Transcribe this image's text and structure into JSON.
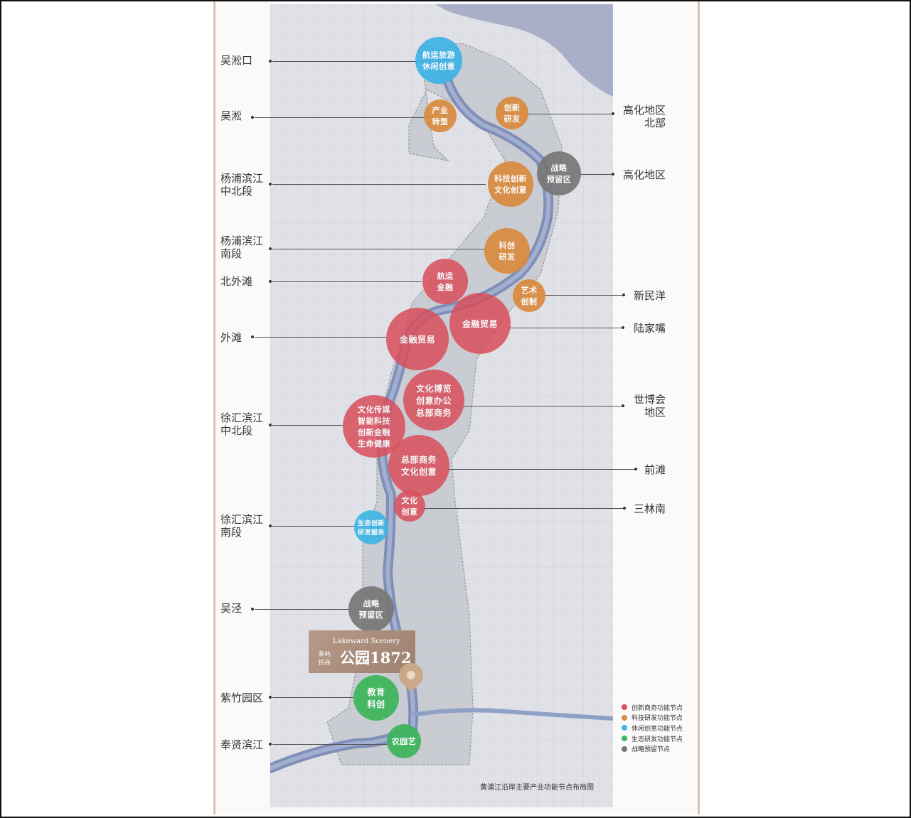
{
  "labels_left": [
    {
      "id": "wusongkou",
      "text": "吴淞口"
    },
    {
      "id": "wusong",
      "text": "吴淞"
    },
    {
      "id": "yangpu-north",
      "text": "杨浦滨江\n中北段"
    },
    {
      "id": "yangpu-south",
      "text": "杨浦滨江\n南段"
    },
    {
      "id": "north-bund",
      "text": "北外滩"
    },
    {
      "id": "bund",
      "text": "外滩"
    },
    {
      "id": "xuhui-north",
      "text": "徐汇滨江\n中北段"
    },
    {
      "id": "xuhui-south",
      "text": "徐汇滨江\n南段"
    },
    {
      "id": "wujing",
      "text": "吴泾"
    },
    {
      "id": "zizhu",
      "text": "紫竹园区"
    },
    {
      "id": "fengxian",
      "text": "奉贤滨江"
    }
  ],
  "labels_right": [
    {
      "id": "gaohua-north",
      "text": "高化地区\n北部"
    },
    {
      "id": "gaohua",
      "text": "高化地区"
    },
    {
      "id": "xinminyang",
      "text": "新民洋"
    },
    {
      "id": "lujiazui",
      "text": "陆家嘴"
    },
    {
      "id": "expo",
      "text": "世博会\n地区"
    },
    {
      "id": "qiantan",
      "text": "前滩"
    },
    {
      "id": "sanlinnan",
      "text": "三林南"
    }
  ],
  "nodes": [
    {
      "id": "shipping-leisure",
      "text": "航运旅游\n休闲创意",
      "category": "leisure"
    },
    {
      "id": "industry-transform",
      "text": "产业\n转型",
      "category": "tech"
    },
    {
      "id": "innovation-rd",
      "text": "创新\n研发",
      "category": "tech"
    },
    {
      "id": "strategic-reserve-north",
      "text": "战略\n预留区",
      "category": "reserve"
    },
    {
      "id": "tech-culture",
      "text": "科技创新\n文化创意",
      "category": "tech"
    },
    {
      "id": "sci-rd",
      "text": "科创\n研发",
      "category": "tech"
    },
    {
      "id": "shipping-finance",
      "text": "航运\n金融",
      "category": "business"
    },
    {
      "id": "art-creation",
      "text": "艺术\n创制",
      "category": "tech"
    },
    {
      "id": "finance-trade-east",
      "text": "金融贸易",
      "category": "business"
    },
    {
      "id": "finance-trade-west",
      "text": "金融贸易",
      "category": "business"
    },
    {
      "id": "culture-expo",
      "text": "文化博览\n创意办公\n总部商务",
      "category": "business"
    },
    {
      "id": "media-tech",
      "text": "文化传媒\n智能科技\n创新金融\n生命健康",
      "category": "business"
    },
    {
      "id": "hq-culture",
      "text": "总部商务\n文化创意",
      "category": "business"
    },
    {
      "id": "culture-creative",
      "text": "文化\n创意",
      "category": "business"
    },
    {
      "id": "eco-rd",
      "text": "生态创新\n研发服务",
      "category": "leisure"
    },
    {
      "id": "strategic-reserve-south",
      "text": "战略\n预留区",
      "category": "reserve"
    },
    {
      "id": "education",
      "text": "教育\n科创",
      "category": "eco"
    },
    {
      "id": "agri-garden",
      "text": "农园艺",
      "category": "eco"
    }
  ],
  "legend": [
    {
      "category": "business",
      "text": "创新商务功能节点",
      "color": "#d94f5c"
    },
    {
      "category": "tech",
      "text": "科技研发功能节点",
      "color": "#d98a3e"
    },
    {
      "category": "leisure",
      "text": "休闲创意功能节点",
      "color": "#3fb4e5"
    },
    {
      "category": "eco",
      "text": "生态研发功能节点",
      "color": "#3bb55a"
    },
    {
      "category": "reserve",
      "text": "战略预留节点",
      "color": "#777777"
    }
  ],
  "caption": "黄浦江沿岸主要产业功能节点布局图",
  "badge": {
    "english": "Lakeward Scenery",
    "small": "象屿\n招商",
    "brand": "公园1872"
  }
}
